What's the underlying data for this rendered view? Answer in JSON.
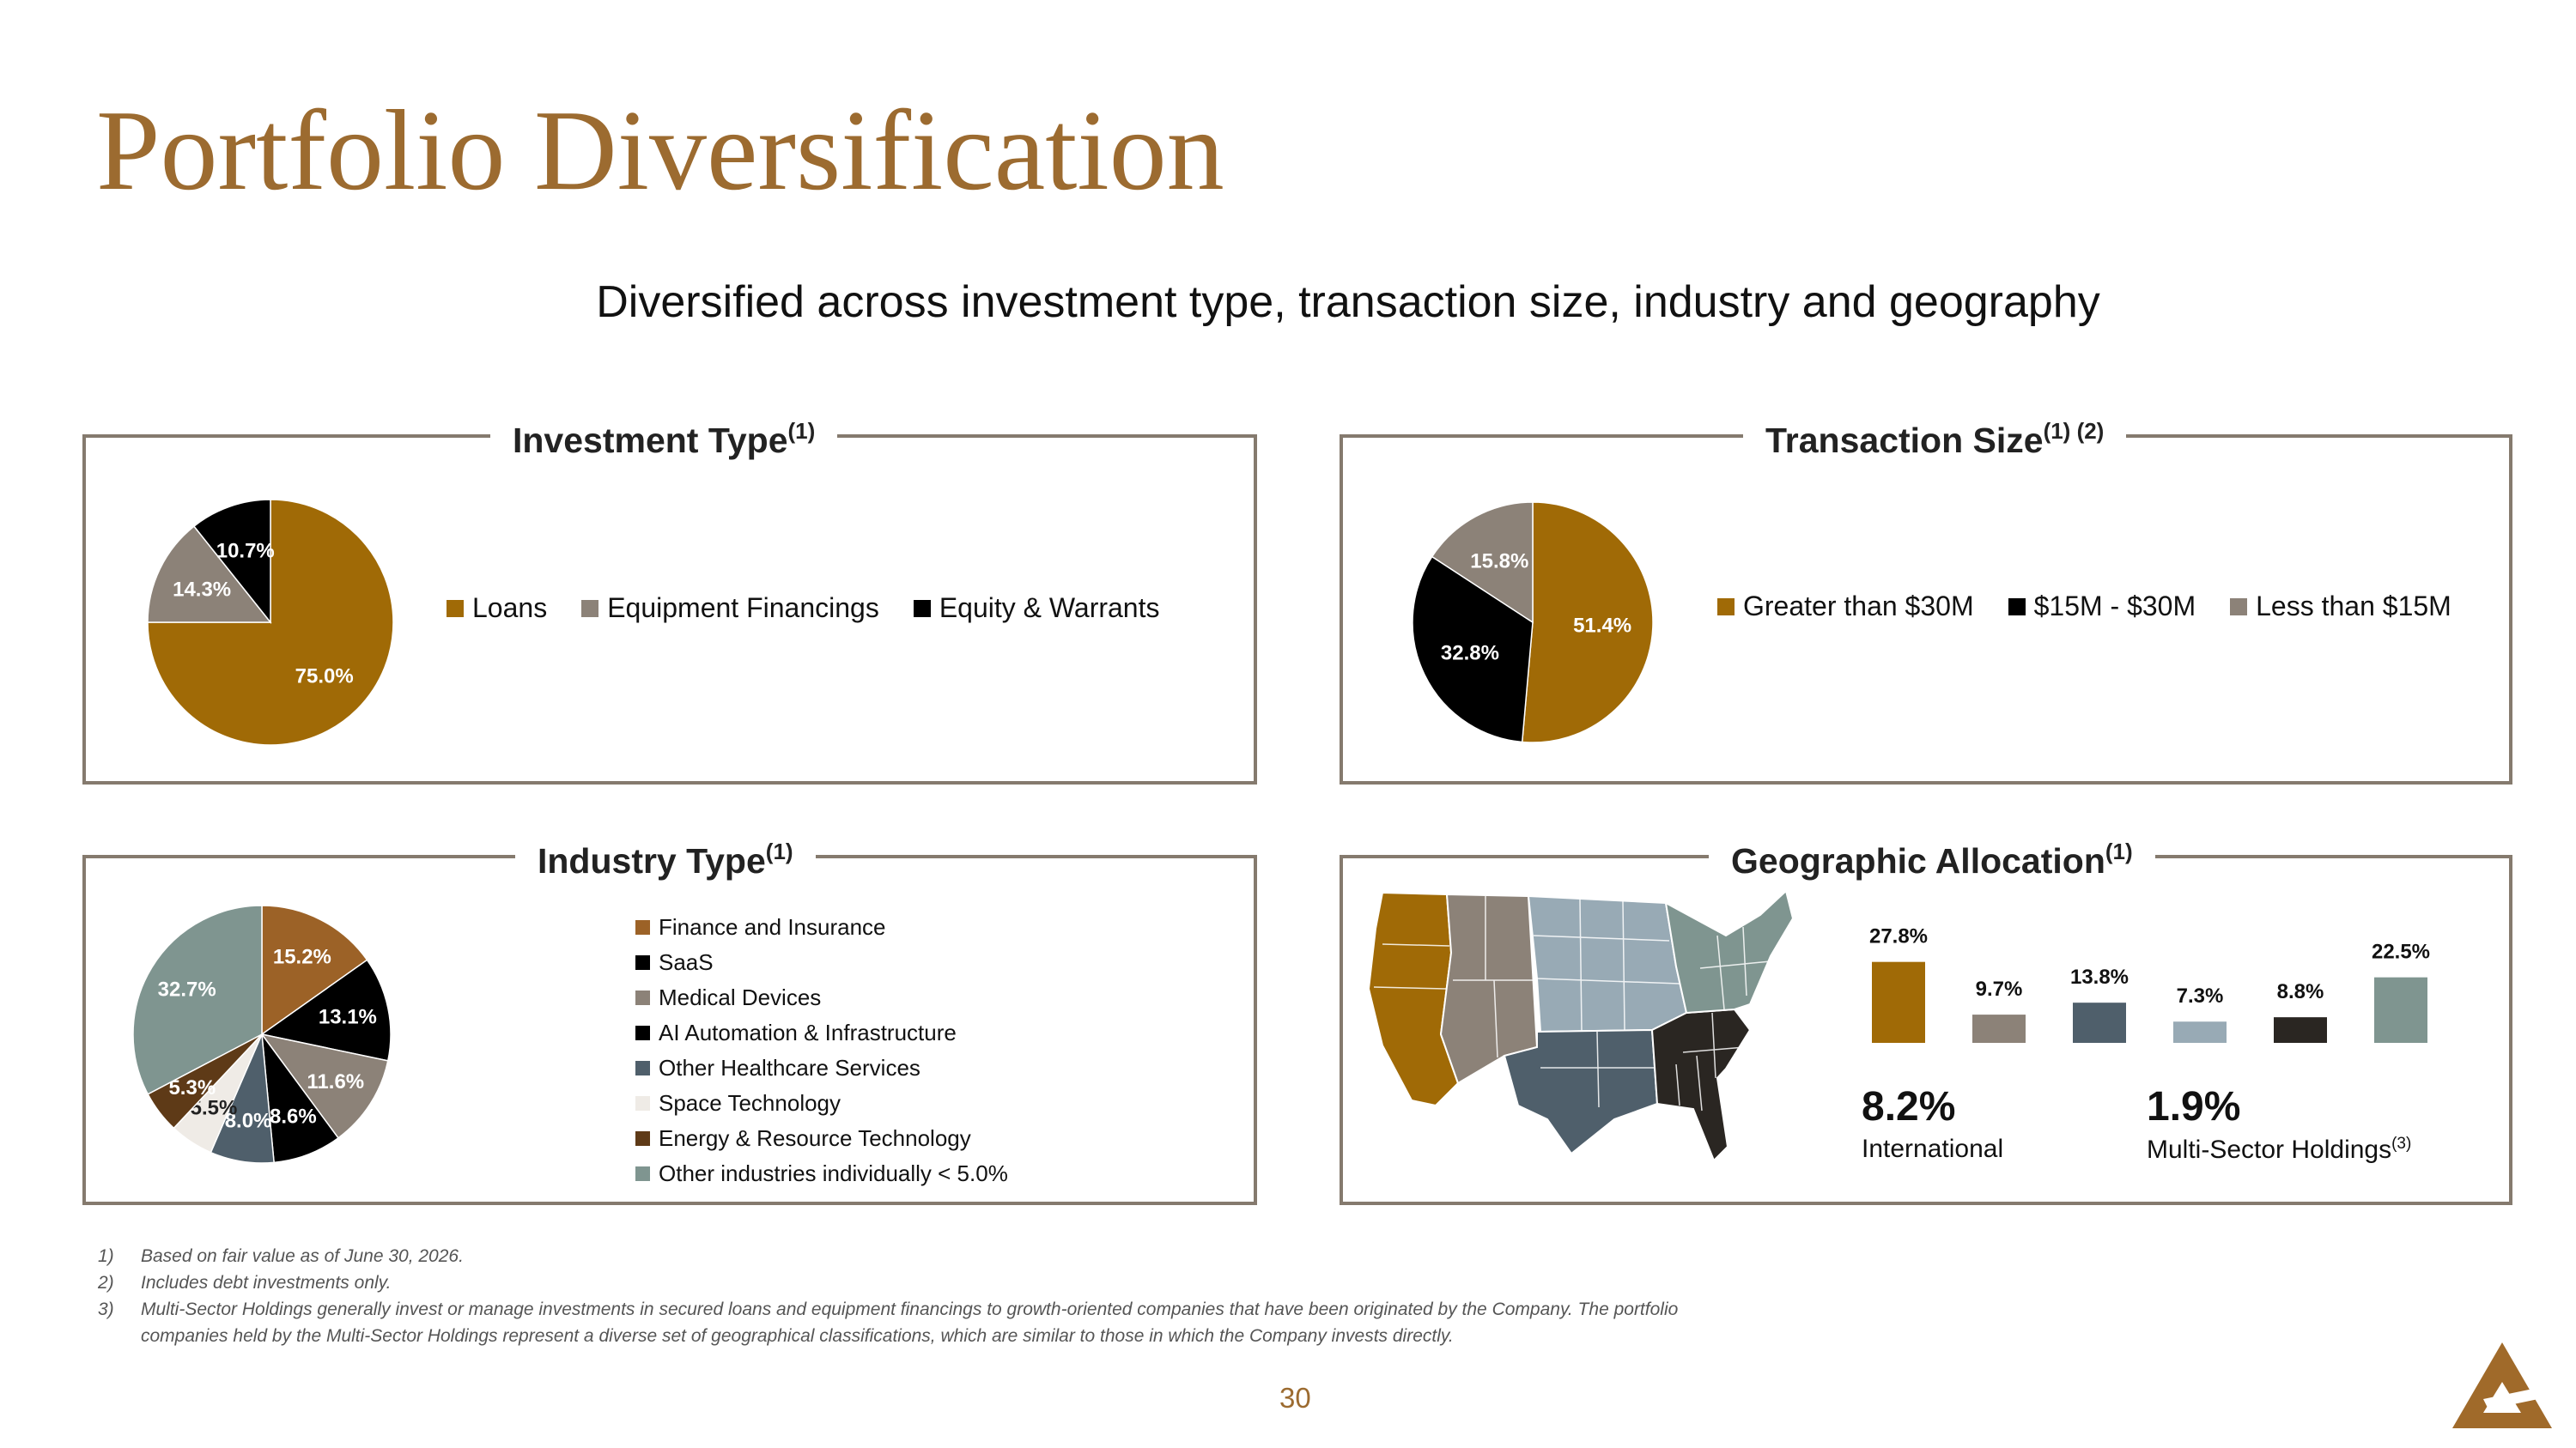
{
  "title": "Portfolio Diversification",
  "subtitle": "Diversified across investment type, transaction size, industry and geography",
  "colors": {
    "gold": "#a06a06",
    "grey": "#8c8278",
    "black": "#000000",
    "slate": "#4f5f6b",
    "offwhite": "#efebe6",
    "brown": "#5e3a17",
    "teal": "#7f9590",
    "lightblue": "#98aab5",
    "border": "#857a6e",
    "title": "#9c6b30"
  },
  "panels": {
    "investment_type": {
      "title": "Investment Type",
      "sup": "(1)"
    },
    "transaction_size": {
      "title": "Transaction Size",
      "sup": "(1) (2)"
    },
    "industry_type": {
      "title": "Industry Type",
      "sup": "(1)"
    },
    "geographic": {
      "title": "Geographic Allocation",
      "sup": "(1)"
    }
  },
  "chart_data": [
    {
      "type": "pie",
      "title": "Investment Type",
      "categories": [
        "Loans",
        "Equipment Financings",
        "Equity & Warrants"
      ],
      "values": [
        75.0,
        14.3,
        10.7
      ],
      "labels": [
        "75.0%",
        "14.3%",
        "10.7%"
      ],
      "colors": [
        "#a06a06",
        "#8c8278",
        "#000000"
      ],
      "legend": "right"
    },
    {
      "type": "pie",
      "title": "Transaction Size",
      "categories": [
        "Greater than $30M",
        "$15M - $30M",
        "Less than $15M"
      ],
      "values": [
        51.4,
        32.8,
        15.8
      ],
      "labels": [
        "51.4%",
        "32.8%",
        "15.8%"
      ],
      "colors": [
        "#a06a06",
        "#000000",
        "#8c8278"
      ],
      "legend": "right"
    },
    {
      "type": "pie",
      "title": "Industry Type",
      "categories": [
        "Finance and Insurance",
        "SaaS",
        "Medical Devices",
        "AI Automation & Infrastructure",
        "Other Healthcare Services",
        "Space Technology",
        "Energy & Resource Technology",
        "Other industries individually < 5.0%"
      ],
      "values": [
        15.2,
        13.1,
        11.6,
        8.6,
        8.0,
        5.5,
        5.3,
        32.7
      ],
      "labels": [
        "15.2%",
        "13.1%",
        "11.6%",
        "8.6%",
        "8.0%",
        "5.5%",
        "5.3%",
        "32.7%"
      ],
      "colors": [
        "#9c6227",
        "#000000",
        "#8c8278",
        "#000000",
        "#4f5f6b",
        "#efebe6",
        "#5e3a17",
        "#7f9590"
      ],
      "legend": "right"
    },
    {
      "type": "bar",
      "title": "Geographic Allocation",
      "categories": [
        "West",
        "Mountain",
        "Midwest",
        "Northeast",
        "Southeast",
        "Southwest"
      ],
      "values": [
        27.8,
        9.7,
        13.8,
        7.3,
        8.8,
        22.5
      ],
      "labels": [
        "27.8%",
        "9.7%",
        "13.8%",
        "7.3%",
        "8.8%",
        "22.5%"
      ],
      "colors": [
        "#a06a06",
        "#8c8278",
        "#4f5f6b",
        "#98aab5",
        "#2a2622",
        "#7f9590"
      ],
      "ylim": [
        0,
        30
      ]
    }
  ],
  "geo_extra": {
    "international_pct": "8.2%",
    "international_label": "International",
    "msh_pct": "1.9%",
    "msh_label": "Multi-Sector Holdings",
    "msh_sup": "(3)"
  },
  "footnotes": [
    {
      "num": "1)",
      "text": "Based on fair value as of June 30, 2026."
    },
    {
      "num": "2)",
      "text": "Includes debt investments only."
    },
    {
      "num": "3)",
      "text": "Multi-Sector Holdings generally invest or manage investments in secured loans and equipment financings to growth-oriented companies that have been originated by the Company. The portfolio"
    },
    {
      "num": "",
      "text": "companies held by the Multi-Sector Holdings represent a diverse set of geographical classifications, which are similar to those in which the Company invests directly."
    }
  ],
  "page_number": "30"
}
